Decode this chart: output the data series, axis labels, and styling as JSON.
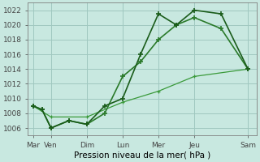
{
  "xlabel": "Pression niveau de la mer( hPa )",
  "background_color": "#c8e8e0",
  "grid_color": "#a0c8c0",
  "line_color_dark": "#1a5c1a",
  "line_color_mid": "#2a7a2a",
  "line_color_light": "#3a9a3a",
  "ylim": [
    1005,
    1023
  ],
  "yticks": [
    1006,
    1008,
    1010,
    1012,
    1014,
    1016,
    1018,
    1020,
    1022
  ],
  "x_labels": [
    "Mar",
    "Ven",
    "Dim",
    "Lun",
    "Mer",
    "Jeu",
    "Sam"
  ],
  "x_positions": [
    0,
    0.5,
    1.5,
    2.5,
    3.5,
    4.5,
    6.0
  ],
  "line1_x": [
    0,
    0.25,
    0.5,
    1.0,
    1.5,
    2.0,
    2.5,
    3.0,
    3.5,
    4.0,
    4.5,
    5.25,
    6.0
  ],
  "line1_y": [
    1009,
    1008.5,
    1006,
    1007,
    1006.5,
    1009,
    1010,
    1016,
    1021.5,
    1020,
    1022,
    1021.5,
    1014
  ],
  "line2_x": [
    0,
    0.25,
    0.5,
    1.0,
    1.5,
    2.0,
    2.5,
    3.0,
    3.5,
    4.0,
    4.5,
    5.25,
    6.0
  ],
  "line2_y": [
    1009,
    1008.5,
    1006,
    1007,
    1006.5,
    1008,
    1013,
    1015,
    1018,
    1020,
    1021,
    1019.5,
    1014
  ],
  "line3_x": [
    0,
    0.5,
    1.5,
    2.5,
    3.5,
    4.5,
    6.0
  ],
  "line3_y": [
    1009,
    1007.5,
    1007.5,
    1009.5,
    1011,
    1013,
    1014
  ],
  "figsize": [
    3.2,
    2.0
  ],
  "dpi": 100
}
